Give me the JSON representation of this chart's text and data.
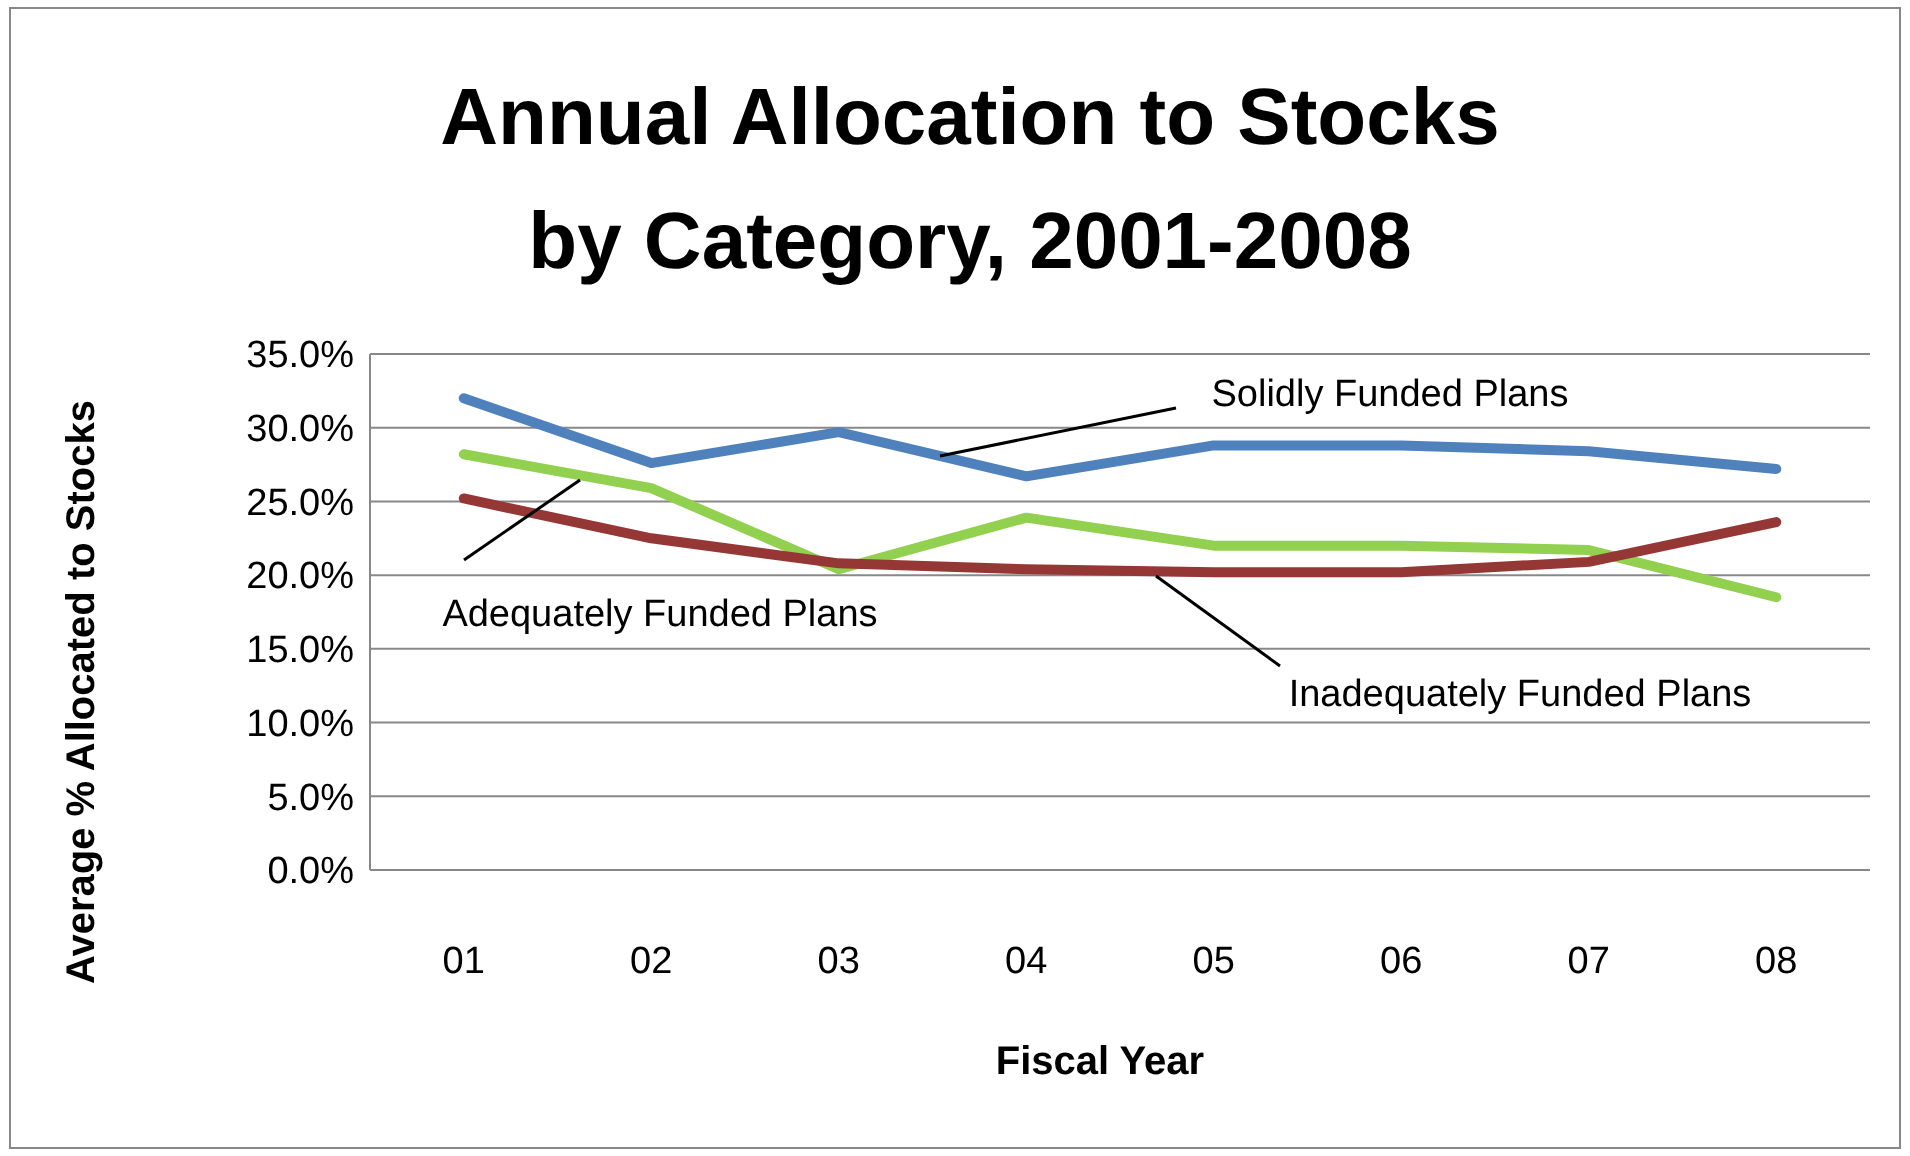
{
  "chart_data": {
    "type": "line",
    "title": "Annual Allocation to Stocks by Category, 2001-2008",
    "xlabel": "Fiscal Year",
    "ylabel": "Average % Allocated to Stocks",
    "categories": [
      "01",
      "02",
      "03",
      "04",
      "05",
      "06",
      "07",
      "08"
    ],
    "series": [
      {
        "name": "Solidly Funded Plans",
        "color": "#4f81bd",
        "values": [
          32.0,
          27.6,
          29.7,
          26.7,
          28.8,
          28.8,
          28.4,
          27.2
        ]
      },
      {
        "name": "Adequately Funded Plans",
        "color": "#92d050",
        "values": [
          28.2,
          25.9,
          20.4,
          23.9,
          22.0,
          22.0,
          21.7,
          18.5
        ]
      },
      {
        "name": "Inadequately Funded Plans",
        "color": "#953735",
        "values": [
          25.2,
          22.5,
          20.8,
          20.4,
          20.2,
          20.2,
          20.9,
          23.6
        ]
      }
    ],
    "ylim": [
      0,
      35
    ],
    "yticks": [
      {
        "value": 0,
        "label": "0.0%"
      },
      {
        "value": 5,
        "label": "5.0%"
      },
      {
        "value": 10,
        "label": "10.0%"
      },
      {
        "value": 15,
        "label": "15.0%"
      },
      {
        "value": 20,
        "label": "20.0%"
      },
      {
        "value": 25,
        "label": "25.0%"
      },
      {
        "value": 30,
        "label": "30.0%"
      },
      {
        "value": 35,
        "label": "35.0%"
      }
    ],
    "grid": "y",
    "legend": false,
    "marker": "none",
    "line_style": "solid"
  }
}
